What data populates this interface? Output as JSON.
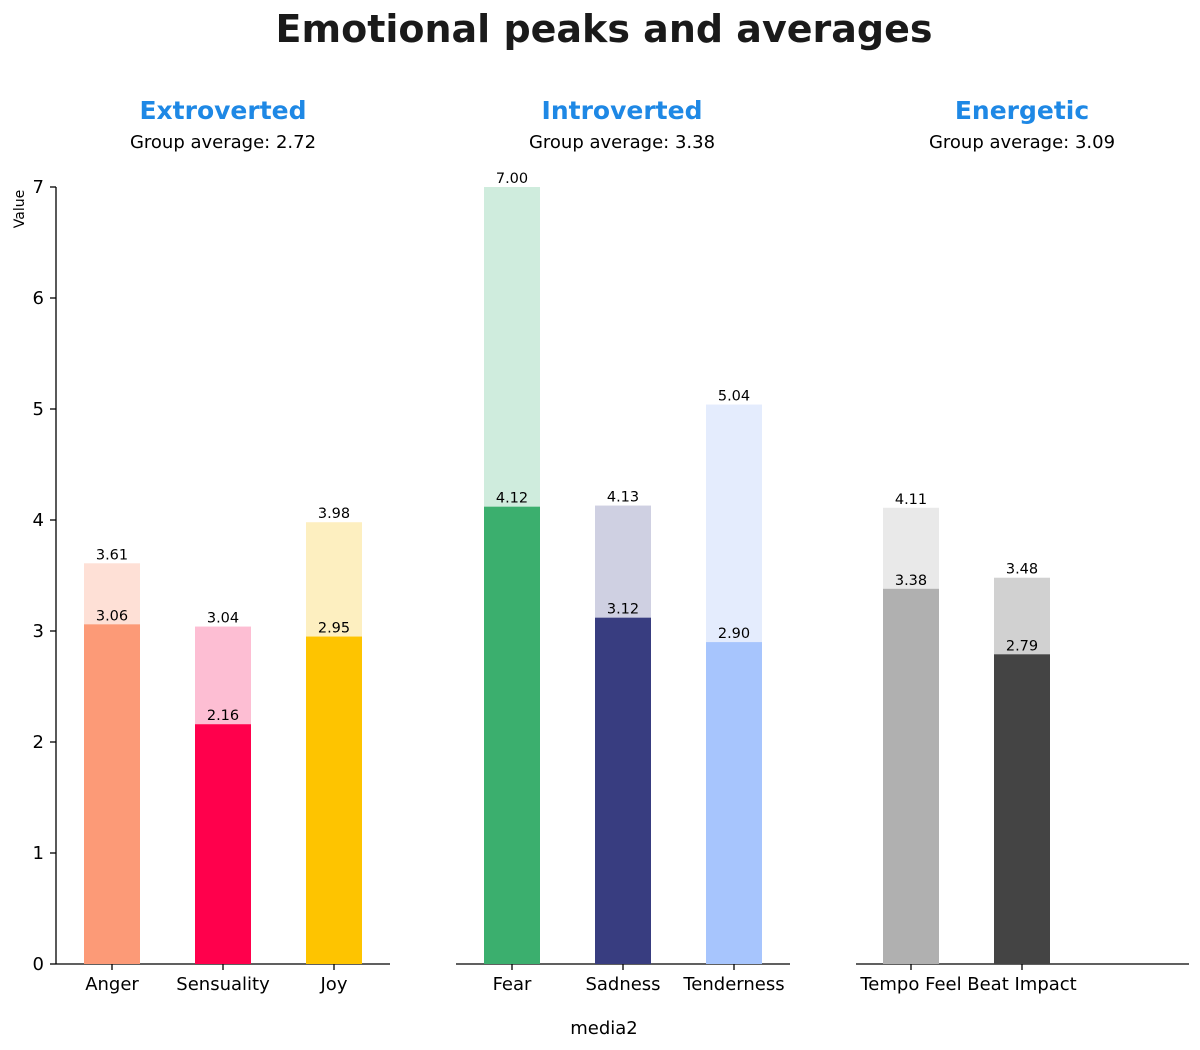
{
  "chart_data": {
    "type": "bar",
    "title": "Emotional peaks and averages",
    "xlabel": "media2",
    "ylabel": "Value",
    "ylim": [
      0,
      7
    ],
    "yticks": [
      0,
      1,
      2,
      3,
      4,
      5,
      6,
      7
    ],
    "series_names": [
      "peak",
      "average"
    ],
    "groups": [
      {
        "name": "Extroverted",
        "subtitle": "Group average: 2.72",
        "categories": [
          {
            "label": "Anger",
            "peak": 3.61,
            "peak_label": "3.61",
            "avg": 3.06,
            "avg_label": "3.06",
            "peak_color": "#fee0d6",
            "avg_color": "#fc9a77"
          },
          {
            "label": "Sensuality",
            "peak": 3.04,
            "peak_label": "3.04",
            "avg": 2.16,
            "avg_label": "2.16",
            "peak_color": "#fdbed3",
            "avg_color": "#ff004c"
          },
          {
            "label": "Joy",
            "peak": 3.98,
            "peak_label": "3.98",
            "avg": 2.95,
            "avg_label": "2.95",
            "peak_color": "#fdefc0",
            "avg_color": "#fec400"
          }
        ]
      },
      {
        "name": "Introverted",
        "subtitle": "Group average: 3.38",
        "categories": [
          {
            "label": "Fear",
            "peak": 7.0,
            "peak_label": "7.00",
            "avg": 4.12,
            "avg_label": "4.12",
            "peak_color": "#cfecdd",
            "avg_color": "#3baf6e"
          },
          {
            "label": "Sadness",
            "peak": 4.13,
            "peak_label": "4.13",
            "avg": 3.12,
            "avg_label": "3.12",
            "peak_color": "#cfd0e2",
            "avg_color": "#383d80"
          },
          {
            "label": "Tenderness",
            "peak": 5.04,
            "peak_label": "5.04",
            "avg": 2.9,
            "avg_label": "2.90",
            "peak_color": "#e4ecfd",
            "avg_color": "#a7c5fd"
          }
        ]
      },
      {
        "name": "Energetic",
        "subtitle": "Group average: 3.09",
        "categories": [
          {
            "label": "Tempo Feel",
            "peak": 4.11,
            "peak_label": "4.11",
            "avg": 3.38,
            "avg_label": "3.38",
            "peak_color": "#e9e9e9",
            "avg_color": "#b0b0b0"
          },
          {
            "label": "Beat Impact",
            "peak": 3.48,
            "peak_label": "3.48",
            "avg": 2.79,
            "avg_label": "2.79",
            "peak_color": "#d1d1d1",
            "avg_color": "#444444"
          }
        ]
      }
    ]
  }
}
